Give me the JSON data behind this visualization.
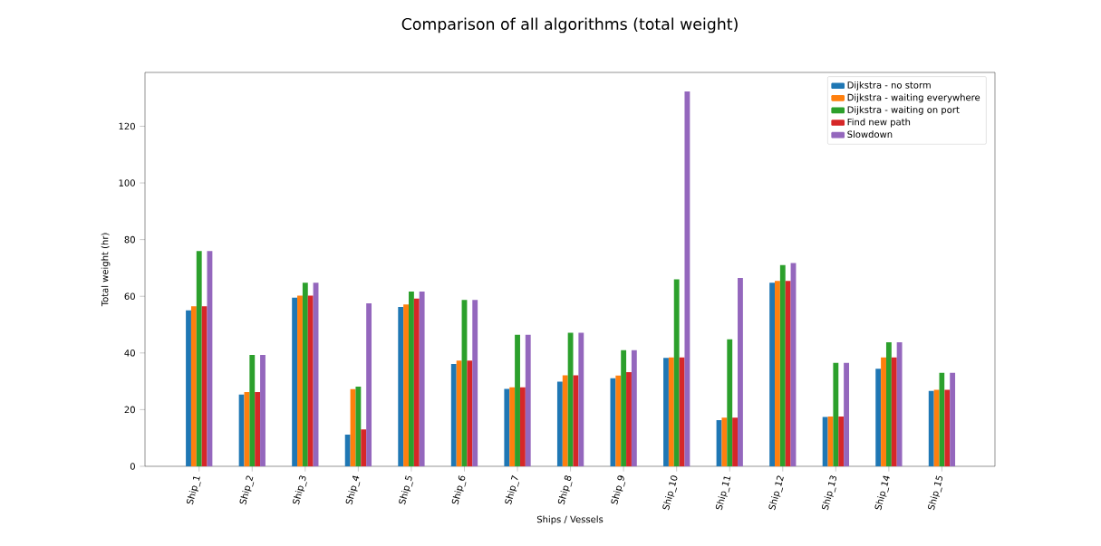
{
  "chart_data": {
    "type": "bar",
    "title": "Comparison of all algorithms (total weight)",
    "xlabel": "Ships / Vessels",
    "ylabel": "Total weight (hr)",
    "categories": [
      "Ship_1",
      "Ship_2",
      "Ship_3",
      "Ship_4",
      "Ship_5",
      "Ship_6",
      "Ship_7",
      "Ship_8",
      "Ship_9",
      "Ship_10",
      "Ship_11",
      "Ship_12",
      "Ship_13",
      "Ship_14",
      "Ship_15"
    ],
    "series": [
      {
        "name": "Dijkstra - no storm",
        "color": "#1f77b4",
        "values": [
          55,
          25.3,
          59.5,
          11.2,
          56.2,
          36.1,
          27.3,
          29.9,
          31.1,
          38.3,
          16.3,
          64.8,
          17.4,
          34.4,
          26.6
        ]
      },
      {
        "name": "Dijkstra - waiting everywhere",
        "color": "#ff7f0e",
        "values": [
          56.5,
          26.2,
          60.2,
          27.2,
          57.1,
          37.3,
          27.9,
          32.1,
          32.0,
          38.4,
          17.2,
          65.4,
          17.6,
          38.4,
          27.0
        ]
      },
      {
        "name": "Dijkstra - waiting on port",
        "color": "#2ca02c",
        "values": [
          76,
          39.3,
          64.8,
          28.1,
          61.7,
          58.7,
          46.4,
          47.1,
          41.0,
          66.0,
          44.8,
          71.0,
          36.5,
          43.8,
          33.0
        ]
      },
      {
        "name": "Find new path",
        "color": "#d62728",
        "values": [
          56.5,
          26.2,
          60.2,
          13,
          59.2,
          37.3,
          27.9,
          32.1,
          33.2,
          38.4,
          17.2,
          65.4,
          17.6,
          38.4,
          27.0
        ]
      },
      {
        "name": "Slowdown",
        "color": "#9467bd",
        "values": [
          76,
          39.3,
          64.8,
          57.5,
          61.7,
          58.7,
          46.4,
          47.1,
          41.0,
          132.3,
          66.5,
          71.7,
          36.5,
          43.8,
          33.0
        ]
      }
    ],
    "ylim": [
      0,
      139
    ],
    "yticks": [
      0,
      20,
      40,
      60,
      80,
      100,
      120
    ],
    "grid": false,
    "legend": "top right"
  }
}
